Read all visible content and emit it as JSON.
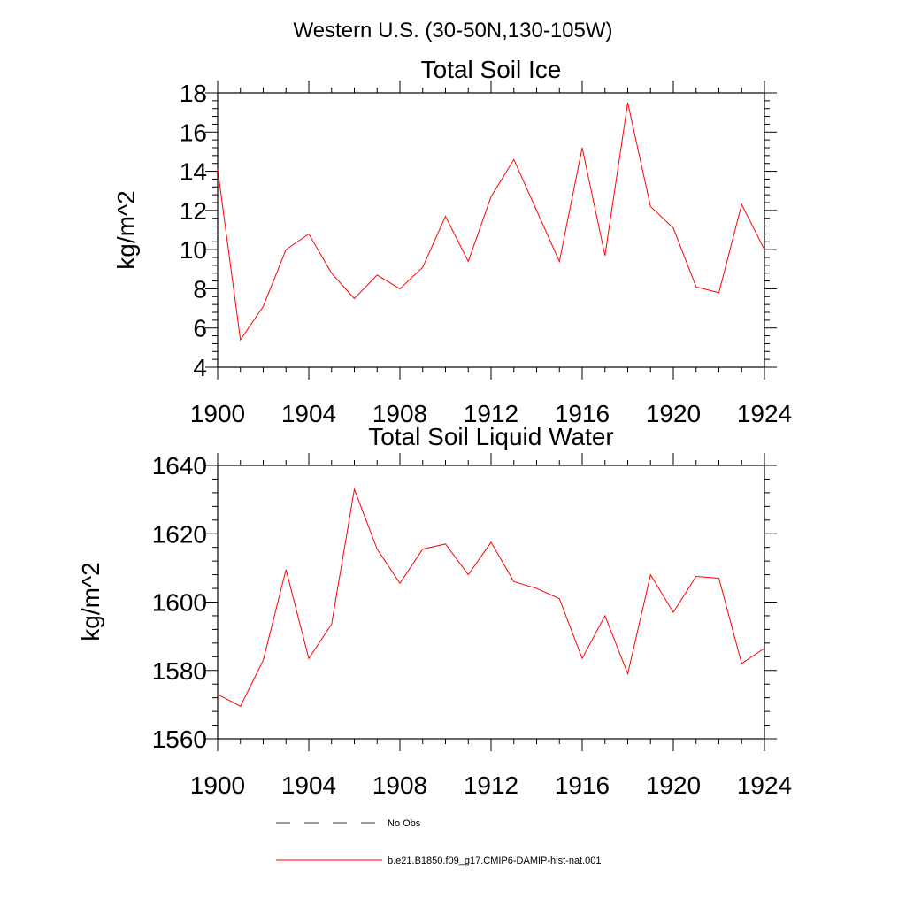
{
  "figure_title": "Western U.S. (30-50N,130-105W)",
  "series_color": "#ff0000",
  "chart_data": [
    {
      "type": "line",
      "title": "Total Soil Ice",
      "xlabel": "",
      "ylabel": "kg/m^2",
      "xlim": [
        1900,
        1924
      ],
      "ylim": [
        4,
        18
      ],
      "xticks": [
        1900,
        1904,
        1908,
        1912,
        1916,
        1920,
        1924
      ],
      "yticks": [
        4,
        6,
        8,
        10,
        12,
        14,
        16,
        18
      ],
      "x": [
        1900,
        1901,
        1902,
        1903,
        1904,
        1905,
        1906,
        1907,
        1908,
        1909,
        1910,
        1911,
        1912,
        1913,
        1914,
        1915,
        1916,
        1917,
        1918,
        1919,
        1920,
        1921,
        1922,
        1923,
        1924
      ],
      "series": [
        {
          "name": "b.e21.B1850.f09_g17.CMIP6-DAMIP-hist-nat.001",
          "values": [
            14.1,
            5.4,
            7.1,
            10.0,
            10.8,
            8.8,
            7.5,
            8.7,
            8.0,
            9.1,
            11.7,
            9.4,
            12.7,
            14.6,
            12.0,
            9.4,
            15.2,
            9.7,
            17.5,
            12.2,
            11.1,
            8.1,
            7.8,
            12.3,
            10.0
          ]
        }
      ]
    },
    {
      "type": "line",
      "title": "Total Soil Liquid Water",
      "xlabel": "",
      "ylabel": "kg/m^2",
      "xlim": [
        1900,
        1924
      ],
      "ylim": [
        1560,
        1640
      ],
      "xticks": [
        1900,
        1904,
        1908,
        1912,
        1916,
        1920,
        1924
      ],
      "yticks": [
        1560,
        1580,
        1600,
        1620,
        1640
      ],
      "x": [
        1900,
        1901,
        1902,
        1903,
        1904,
        1905,
        1906,
        1907,
        1908,
        1909,
        1910,
        1911,
        1912,
        1913,
        1914,
        1915,
        1916,
        1917,
        1918,
        1919,
        1920,
        1921,
        1922,
        1923,
        1924
      ],
      "series": [
        {
          "name": "b.e21.B1850.f09_g17.CMIP6-DAMIP-hist-nat.001",
          "values": [
            1573,
            1569.5,
            1583,
            1609.5,
            1583.5,
            1593.5,
            1633,
            1615.5,
            1605.5,
            1615.5,
            1617,
            1608,
            1617.5,
            1606,
            1604,
            1601,
            1583.5,
            1596,
            1579,
            1608,
            1597,
            1607.5,
            1607,
            1582,
            1586.5
          ]
        }
      ]
    }
  ],
  "legend": [
    {
      "label": "No Obs",
      "style": "dashed",
      "color": "#000000"
    },
    {
      "label": "b.e21.B1850.f09_g17.CMIP6-DAMIP-hist-nat.001",
      "style": "solid",
      "color": "#ff0000"
    }
  ]
}
